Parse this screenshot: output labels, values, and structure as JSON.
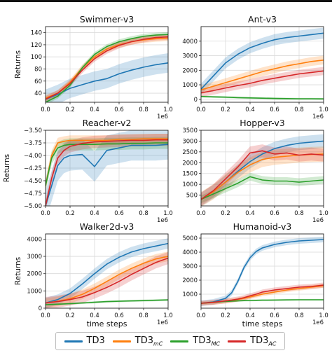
{
  "chart_data": [
    {
      "type": "line",
      "title": "Swimmer-v3",
      "ylabel": "Returns",
      "xlabel": "",
      "xlim": [
        0,
        1.0
      ],
      "x_multiplier": "1e6",
      "xticks": [
        "0.0",
        "0.2",
        "0.4",
        "0.6",
        "0.8",
        "1.0"
      ],
      "ylim": [
        25,
        150
      ],
      "yticks": [
        "40",
        "60",
        "80",
        "100",
        "120",
        "140"
      ],
      "x": [
        0.0,
        0.1,
        0.2,
        0.3,
        0.4,
        0.5,
        0.6,
        0.7,
        0.8,
        0.9,
        1.0
      ],
      "series": [
        {
          "name": "TD3",
          "values": [
            30,
            38,
            48,
            54,
            60,
            64,
            72,
            78,
            83,
            87,
            90
          ],
          "band": 16
        },
        {
          "name": "TD3mC",
          "values": [
            32,
            40,
            58,
            82,
            100,
            113,
            120,
            125,
            128,
            130,
            131
          ],
          "band": 5
        },
        {
          "name": "TD3MC",
          "values": [
            25,
            35,
            53,
            82,
            104,
            117,
            125,
            130,
            134,
            136,
            137
          ],
          "band": 4
        },
        {
          "name": "TD3AC",
          "values": [
            30,
            40,
            56,
            78,
            97,
            110,
            119,
            125,
            129,
            132,
            133
          ],
          "band": 5
        }
      ]
    },
    {
      "type": "line",
      "title": "Ant-v3",
      "ylabel": "",
      "xlabel": "",
      "xlim": [
        0,
        1.0
      ],
      "x_multiplier": "1e6",
      "xticks": [
        "0.0",
        "0.2",
        "0.4",
        "0.6",
        "0.8",
        "1.0"
      ],
      "ylim": [
        -200,
        5000
      ],
      "yticks": [
        "0",
        "1000",
        "2000",
        "3000",
        "4000"
      ],
      "x": [
        0.0,
        0.1,
        0.2,
        0.3,
        0.4,
        0.5,
        0.6,
        0.7,
        0.8,
        0.9,
        1.0
      ],
      "series": [
        {
          "name": "TD3",
          "values": [
            700,
            1600,
            2500,
            3100,
            3550,
            3850,
            4100,
            4250,
            4350,
            4450,
            4550
          ],
          "band": 380
        },
        {
          "name": "TD3mC",
          "values": [
            650,
            900,
            1150,
            1400,
            1650,
            1900,
            2100,
            2300,
            2450,
            2600,
            2700
          ],
          "band": 300
        },
        {
          "name": "TD3MC",
          "values": [
            200,
            170,
            150,
            120,
            100,
            80,
            60,
            50,
            40,
            40,
            30
          ],
          "band": 70
        },
        {
          "name": "TD3AC",
          "values": [
            450,
            600,
            780,
            950,
            1100,
            1300,
            1450,
            1600,
            1750,
            1850,
            1950
          ],
          "band": 280
        }
      ]
    },
    {
      "type": "line",
      "title": "Reacher-v2",
      "ylabel": "Returns",
      "xlabel": "",
      "xlim": [
        0,
        1.0
      ],
      "x_multiplier": "1e6",
      "xticks": [
        "0.0",
        "0.2",
        "0.4",
        "0.6",
        "0.8",
        "1.0"
      ],
      "ylim": [
        -5.0,
        -3.5
      ],
      "yticks": [
        "−3.50",
        "−3.75",
        "−4.00",
        "−4.25",
        "−4.50",
        "−4.75",
        "−5.00"
      ],
      "x": [
        0.0,
        0.05,
        0.1,
        0.15,
        0.2,
        0.3,
        0.4,
        0.5,
        0.6,
        0.7,
        0.8,
        0.9,
        1.0
      ],
      "series": [
        {
          "name": "TD3",
          "values": [
            -5.0,
            -4.6,
            -4.2,
            -4.05,
            -4.0,
            -3.98,
            -4.22,
            -3.9,
            -3.85,
            -3.8,
            -3.8,
            -3.8,
            -3.78
          ],
          "band": 0.3
        },
        {
          "name": "TD3mC",
          "values": [
            -4.6,
            -4.0,
            -3.75,
            -3.72,
            -3.7,
            -3.7,
            -3.7,
            -3.7,
            -3.68,
            -3.68,
            -3.67,
            -3.67,
            -3.67
          ],
          "band": 0.1
        },
        {
          "name": "TD3MC",
          "values": [
            -4.6,
            -4.05,
            -3.85,
            -3.8,
            -3.78,
            -3.78,
            -3.78,
            -3.77,
            -3.77,
            -3.76,
            -3.76,
            -3.75,
            -3.75
          ],
          "band": 0.12
        },
        {
          "name": "TD3AC",
          "values": [
            -5.0,
            -4.45,
            -4.05,
            -3.9,
            -3.82,
            -3.76,
            -3.73,
            -3.72,
            -3.71,
            -3.7,
            -3.7,
            -3.69,
            -3.69
          ],
          "band": 0.12
        }
      ]
    },
    {
      "type": "line",
      "title": "Hopper-v3",
      "ylabel": "",
      "xlabel": "",
      "xlim": [
        0,
        1.0
      ],
      "x_multiplier": "1e6",
      "xticks": [
        "0.0",
        "0.2",
        "0.4",
        "0.6",
        "0.8",
        "1.0"
      ],
      "ylim": [
        0,
        3500
      ],
      "yticks": [
        "500",
        "1000",
        "1500",
        "2000",
        "2500",
        "3000",
        "3500"
      ],
      "x": [
        0.0,
        0.1,
        0.2,
        0.3,
        0.4,
        0.5,
        0.6,
        0.7,
        0.8,
        0.9,
        1.0
      ],
      "series": [
        {
          "name": "TD3",
          "values": [
            300,
            650,
            1100,
            1600,
            2050,
            2400,
            2650,
            2800,
            2900,
            2950,
            3000
          ],
          "band": 320
        },
        {
          "name": "TD3mC",
          "values": [
            300,
            650,
            1100,
            1550,
            1900,
            2150,
            2250,
            2300,
            2350,
            2380,
            2400
          ],
          "band": 350
        },
        {
          "name": "TD3MC",
          "values": [
            300,
            550,
            800,
            1050,
            1350,
            1200,
            1150,
            1150,
            1100,
            1150,
            1200
          ],
          "band": 180
        },
        {
          "name": "TD3AC",
          "values": [
            300,
            700,
            1250,
            1800,
            2450,
            2550,
            2400,
            2450,
            2350,
            2400,
            2350
          ],
          "band": 300
        }
      ]
    },
    {
      "type": "line",
      "title": "Walker2d-v3",
      "ylabel": "Returns",
      "xlabel": "time steps",
      "xlim": [
        0,
        1.0
      ],
      "x_multiplier": "1e6",
      "xticks": [
        "0.0",
        "0.2",
        "0.4",
        "0.6",
        "0.8",
        "1.0"
      ],
      "ylim": [
        0,
        4300
      ],
      "yticks": [
        "0",
        "1000",
        "2000",
        "3000",
        "4000"
      ],
      "x": [
        0.0,
        0.1,
        0.2,
        0.3,
        0.4,
        0.5,
        0.6,
        0.7,
        0.8,
        0.9,
        1.0
      ],
      "series": [
        {
          "name": "TD3",
          "values": [
            300,
            500,
            850,
            1400,
            2000,
            2550,
            2950,
            3250,
            3450,
            3600,
            3750
          ],
          "band": 300
        },
        {
          "name": "TD3mC",
          "values": [
            300,
            400,
            550,
            800,
            1150,
            1550,
            1950,
            2300,
            2600,
            2850,
            3000
          ],
          "band": 280
        },
        {
          "name": "TD3MC",
          "values": [
            200,
            230,
            260,
            300,
            340,
            380,
            400,
            420,
            440,
            460,
            480
          ],
          "band": 60
        },
        {
          "name": "TD3AC",
          "values": [
            300,
            380,
            500,
            650,
            900,
            1200,
            1550,
            1950,
            2300,
            2650,
            2900
          ],
          "band": 350
        }
      ]
    },
    {
      "type": "line",
      "title": "Humanoid-v3",
      "ylabel": "",
      "xlabel": "time steps",
      "xlim": [
        0,
        1.0
      ],
      "x_multiplier": "1e6",
      "xticks": [
        "0.0",
        "0.2",
        "0.4",
        "0.6",
        "0.8",
        "1.0"
      ],
      "ylim": [
        0,
        5300
      ],
      "yticks": [
        "1000",
        "2000",
        "3000",
        "4000",
        "5000"
      ],
      "x": [
        0.0,
        0.1,
        0.2,
        0.25,
        0.3,
        0.35,
        0.4,
        0.45,
        0.5,
        0.6,
        0.7,
        0.8,
        0.9,
        1.0
      ],
      "series": [
        {
          "name": "TD3",
          "values": [
            350,
            450,
            700,
            1100,
            1900,
            2900,
            3600,
            4050,
            4300,
            4550,
            4700,
            4800,
            4850,
            4900
          ],
          "band": 200
        },
        {
          "name": "TD3mC",
          "values": [
            350,
            400,
            500,
            560,
            620,
            700,
            800,
            900,
            1000,
            1150,
            1300,
            1400,
            1500,
            1600
          ],
          "band": 150
        },
        {
          "name": "TD3MC",
          "values": [
            350,
            420,
            480,
            500,
            520,
            540,
            550,
            560,
            570,
            580,
            590,
            600,
            600,
            600
          ],
          "band": 60
        },
        {
          "name": "TD3AC",
          "values": [
            350,
            420,
            520,
            580,
            650,
            750,
            880,
            1000,
            1150,
            1300,
            1400,
            1500,
            1550,
            1650
          ],
          "band": 180
        }
      ]
    }
  ],
  "colors": {
    "TD3": "#1f77b4",
    "TD3mC": "#ff7f0e",
    "TD3MC": "#2ca02c",
    "TD3AC": "#d62728",
    "grid": "#d9d9d9"
  },
  "legend": {
    "items": [
      {
        "base": "TD3",
        "sub": "",
        "color": "#1f77b4"
      },
      {
        "base": "TD3",
        "sub": "mC",
        "color": "#ff7f0e"
      },
      {
        "base": "TD3",
        "sub": "MC",
        "color": "#2ca02c"
      },
      {
        "base": "TD3",
        "sub": "AC",
        "color": "#d62728"
      }
    ]
  }
}
